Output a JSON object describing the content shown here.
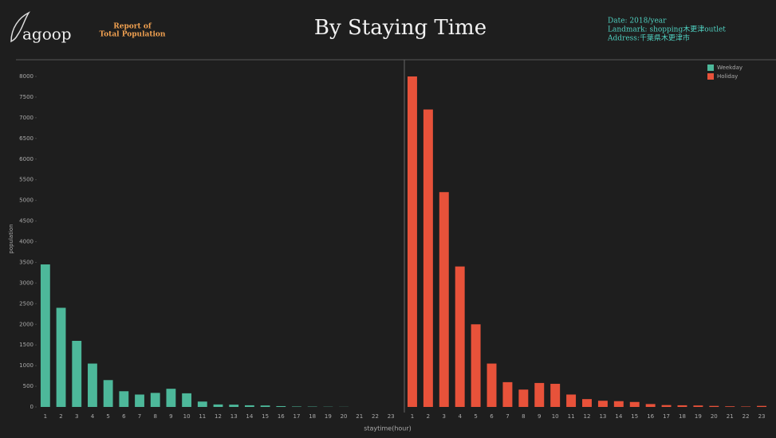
{
  "header": {
    "logo": "agoop",
    "report": [
      "Report of",
      "Total Population"
    ],
    "date": "Date: 2018/year",
    "landmark": "Landmark: shopping木更津outlet",
    "address": "Address:千葉県木更津市"
  },
  "chart_data": {
    "type": "bar",
    "title": "By Staying Time",
    "x_label": "staytime(hour)",
    "y_label": "population",
    "categories": [
      "1",
      "2",
      "3",
      "4",
      "5",
      "6",
      "7",
      "8",
      "9",
      "10",
      "11",
      "12",
      "13",
      "14",
      "15",
      "16",
      "17",
      "18",
      "19",
      "20",
      "21",
      "22",
      "23"
    ],
    "series": [
      {
        "name": "Weekday",
        "color": "#4db89a",
        "values": [
          3450,
          2400,
          1600,
          1050,
          650,
          380,
          300,
          340,
          440,
          330,
          130,
          60,
          55,
          40,
          35,
          20,
          10,
          8,
          5,
          3,
          0,
          0,
          0
        ]
      },
      {
        "name": "Holiday",
        "color": "#e8523a",
        "values": [
          8000,
          7200,
          5200,
          3400,
          2000,
          1050,
          600,
          420,
          580,
          560,
          300,
          190,
          150,
          140,
          120,
          70,
          45,
          40,
          35,
          25,
          15,
          10,
          25
        ]
      }
    ],
    "ylim": [
      0,
      8000
    ],
    "yticks": [
      0,
      500,
      1000,
      1500,
      2000,
      2500,
      3000,
      3500,
      4000,
      4500,
      5000,
      5500,
      6000,
      6500,
      7000,
      7500,
      8000
    ],
    "grid": false,
    "legend": "top-right"
  }
}
